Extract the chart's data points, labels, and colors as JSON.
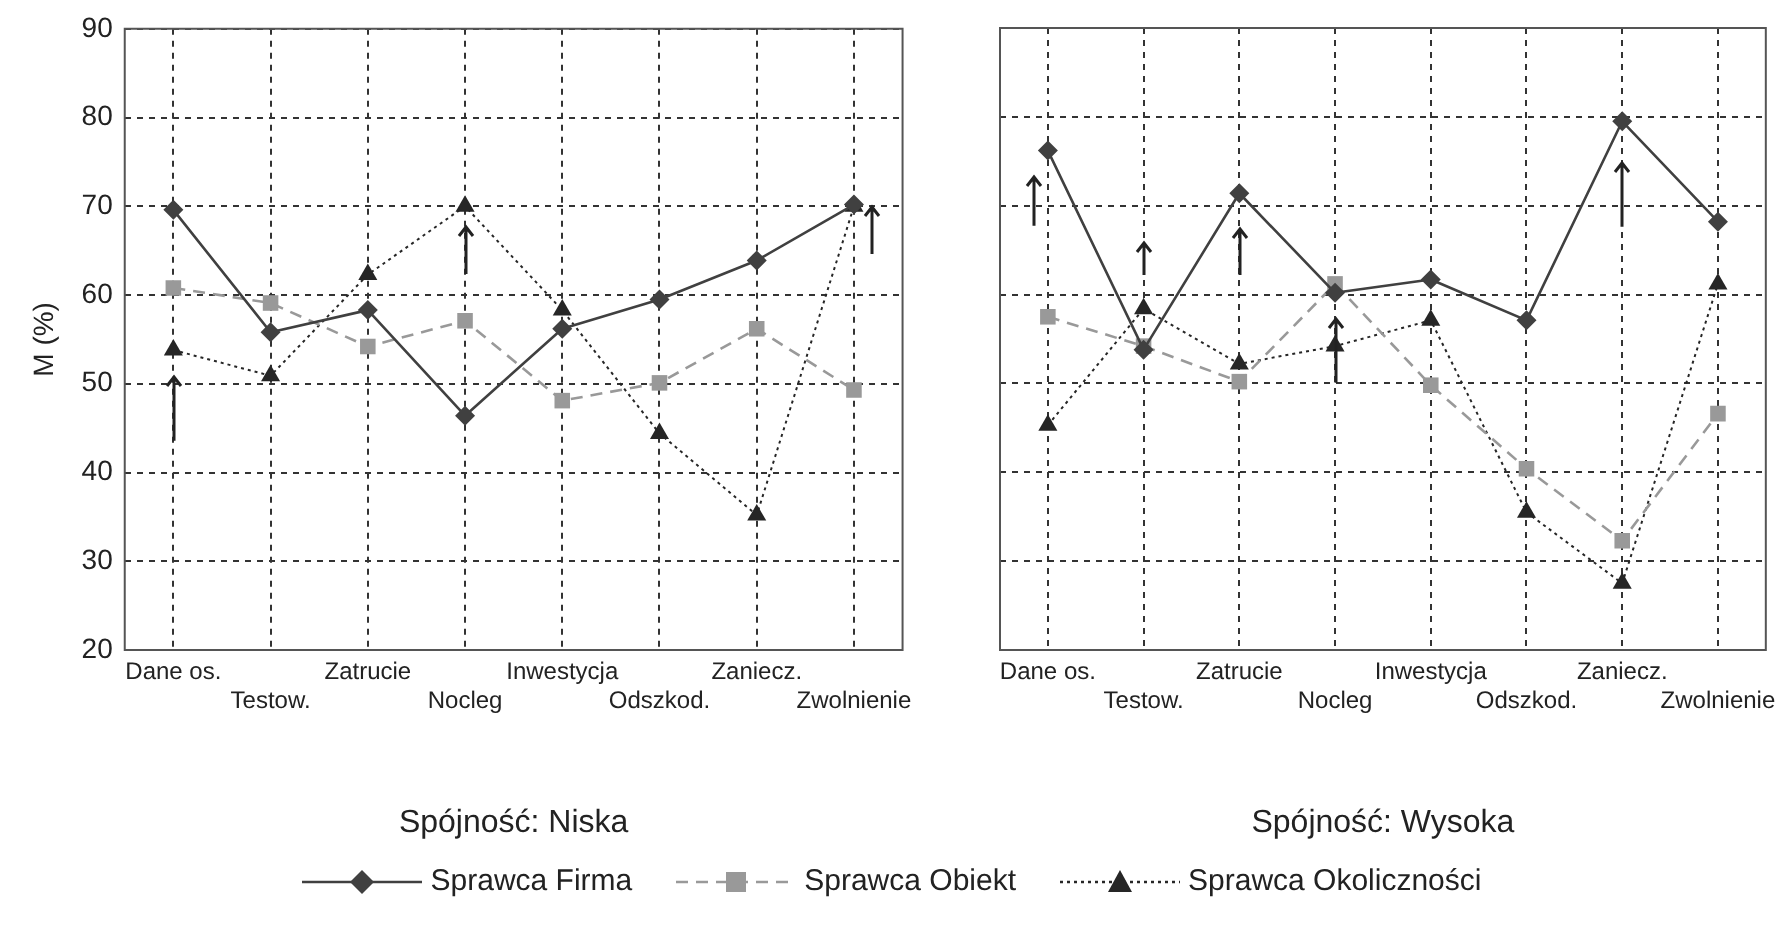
{
  "chart_data": [
    {
      "type": "line",
      "xlabel": "Spójność: Niska",
      "ylabel": "M (%)",
      "categories": [
        "Dane os.",
        "Testow.",
        "Zatrucie",
        "Nocleg",
        "Inwestycja",
        "Odszkod.",
        "Zaniecz.",
        "Zwolnienie"
      ],
      "ylim": [
        20,
        90
      ],
      "yticks": [
        20,
        30,
        40,
        50,
        60,
        70,
        80,
        90
      ],
      "grid": true,
      "legend": "bottom",
      "series": [
        {
          "name": "Sprawca Firma",
          "color": "#404040",
          "marker": "diamond",
          "line_style": "solid",
          "values": [
            69.6,
            55.8,
            58.3,
            46.4,
            56.2,
            59.5,
            63.9,
            70.2
          ]
        },
        {
          "name": "Sprawca Obiekt",
          "color": "#999999",
          "marker": "square",
          "line_style": "dashed",
          "values": [
            60.8,
            59.1,
            54.2,
            57.1,
            48.1,
            50.1,
            56.2,
            49.3
          ]
        },
        {
          "name": "Sprawca Okoliczności",
          "color": "#262626",
          "marker": "triangle",
          "line_style": "dotted",
          "values": [
            53.8,
            50.9,
            62.3,
            70.0,
            58.3,
            44.4,
            35.2,
            70.0
          ]
        }
      ]
    },
    {
      "type": "line",
      "xlabel": "Spójność: Wysoka",
      "categories": [
        "Dane os.",
        "Testow.",
        "Zatrucie",
        "Nocleg",
        "Inwestycja",
        "Odszkod.",
        "Zaniecz.",
        "Zwolnienie"
      ],
      "ylim": [
        20,
        90
      ],
      "yticks": [
        20,
        30,
        40,
        50,
        60,
        70,
        80,
        90
      ],
      "grid": true,
      "tick_labels": "x",
      "series": [
        {
          "color": "#404040",
          "marker": "diamond",
          "line_style": "solid",
          "values": [
            76.2,
            53.8,
            71.4,
            60.2,
            61.7,
            57.1,
            79.5,
            68.2
          ]
        },
        {
          "color": "#999999",
          "marker": "square",
          "line_style": "dashed",
          "values": [
            57.5,
            54.2,
            50.2,
            61.2,
            49.8,
            40.4,
            32.3,
            46.6
          ]
        },
        {
          "color": "#262626",
          "marker": "triangle",
          "line_style": "dotted",
          "values": [
            45.3,
            58.4,
            52.2,
            54.2,
            57.1,
            35.5,
            27.5,
            61.2
          ]
        }
      ]
    }
  ]
}
